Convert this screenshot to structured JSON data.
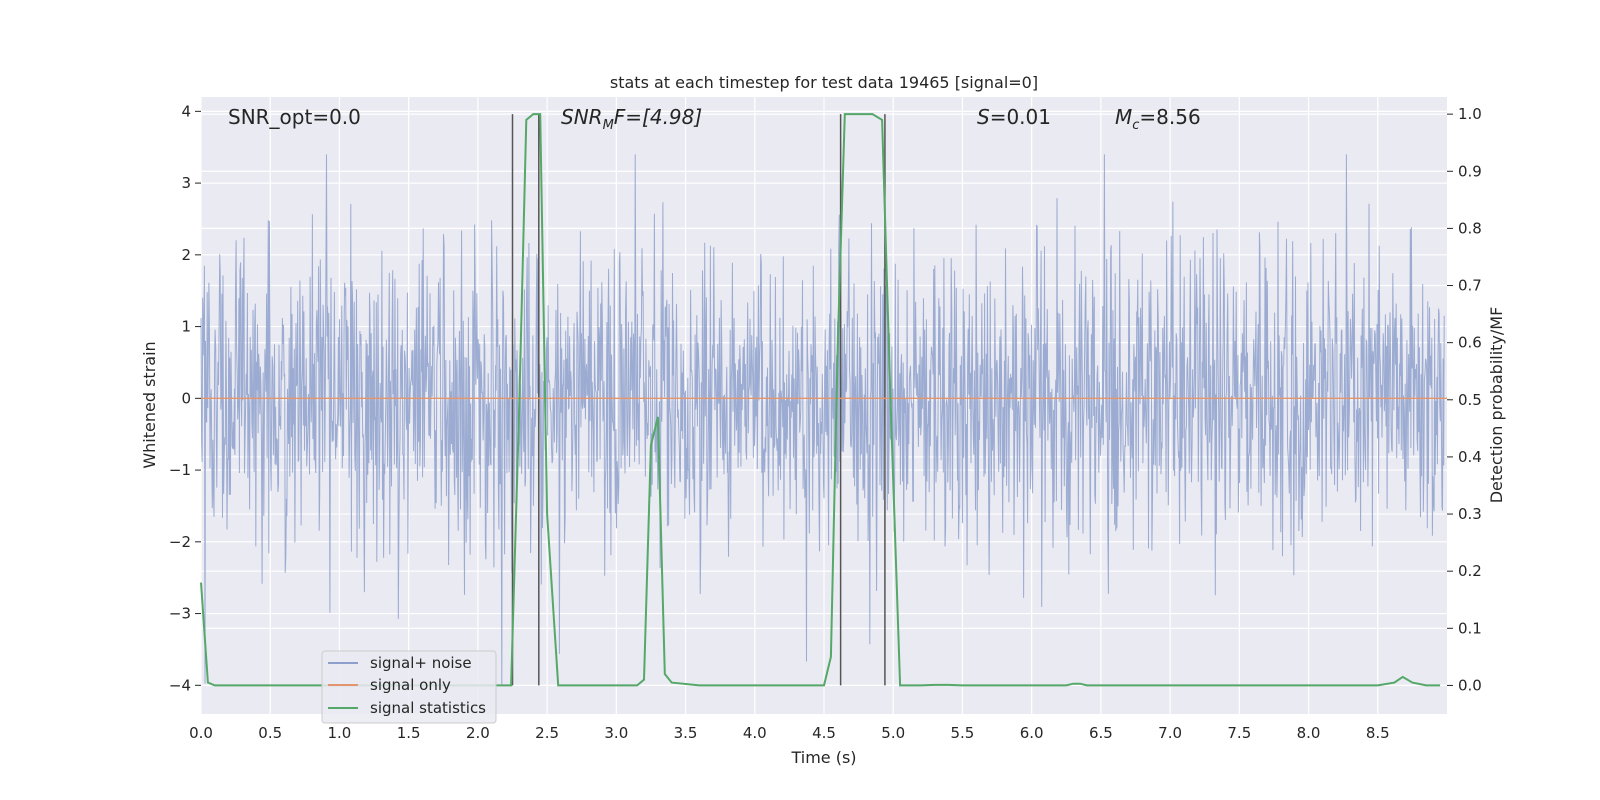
{
  "chart_data": {
    "type": "line",
    "title": "stats at each timestep for test data 19465 [signal=0]",
    "xlabel": "Time (s)",
    "ylabel_left": "Whitened strain",
    "ylabel_right": "Detection probability/MF",
    "xlim": [
      0.0,
      9.0
    ],
    "ylim_left": [
      -4.4,
      4.2
    ],
    "ylim_right": [
      -0.05,
      1.03
    ],
    "x_ticks": [
      "0.0",
      "0.5",
      "1.0",
      "1.5",
      "2.0",
      "2.5",
      "3.0",
      "3.5",
      "4.0",
      "4.5",
      "5.0",
      "5.5",
      "6.0",
      "6.5",
      "7.0",
      "7.5",
      "8.0",
      "8.5"
    ],
    "y_ticks_left": [
      "4",
      "3",
      "2",
      "1",
      "0",
      "−1",
      "−2",
      "−3",
      "−4"
    ],
    "y_ticks_right": [
      "1.0",
      "0.9",
      "0.8",
      "0.7",
      "0.6",
      "0.5",
      "0.4",
      "0.3",
      "0.2",
      "0.1",
      "0.0"
    ],
    "grid": true,
    "legend_position": "lower-left",
    "annotations": {
      "snr_opt": "SNR_opt=0.0",
      "snr_mf": "SNR",
      "snr_mf_sub": "M",
      "snr_mf_rest": "F=[4.98]",
      "s": "S",
      "s_rest": "=0.01",
      "mc": "M",
      "mc_sub": "c",
      "mc_rest": "=8.56"
    },
    "series": [
      {
        "name": "signal+ noise",
        "color": "#8da0cb",
        "axis": "left",
        "description_range": [
          -4.0,
          3.4
        ]
      },
      {
        "name": "signal only",
        "color": "#e29670",
        "axis": "left",
        "x": [
          0.0,
          9.0
        ],
        "y": [
          0.0,
          0.0
        ]
      },
      {
        "name": "signal statistics",
        "color": "#55a868",
        "axis": "right",
        "x": [
          0.0,
          0.05,
          0.1,
          0.5,
          1.0,
          1.5,
          2.0,
          2.24,
          2.3,
          2.35,
          2.4,
          2.45,
          2.5,
          2.58,
          2.7,
          3.0,
          3.15,
          3.2,
          3.25,
          3.3,
          3.35,
          3.4,
          3.6,
          4.0,
          4.5,
          4.55,
          4.6,
          4.65,
          4.7,
          4.75,
          4.85,
          4.92,
          4.98,
          5.05,
          5.1,
          5.2,
          5.3,
          5.4,
          5.5,
          6.0,
          6.25,
          6.3,
          6.35,
          6.4,
          7.0,
          8.0,
          8.5,
          8.62,
          8.68,
          8.75,
          8.85,
          8.95
        ],
        "y": [
          0.18,
          0.005,
          0.0,
          0.0,
          0.0,
          0.0,
          0.0,
          0.0,
          0.5,
          0.99,
          1.0,
          1.0,
          0.3,
          0.0,
          0.0,
          0.0,
          0.0,
          0.01,
          0.42,
          0.47,
          0.02,
          0.005,
          0.0,
          0.0,
          0.0,
          0.05,
          0.6,
          1.0,
          1.0,
          1.0,
          1.0,
          0.99,
          0.5,
          0.0,
          0.0,
          0.0,
          0.001,
          0.001,
          0.0,
          0.0,
          0.0,
          0.003,
          0.003,
          0.0,
          0.0,
          0.0,
          0.0,
          0.005,
          0.015,
          0.005,
          0.0,
          0.0
        ]
      }
    ],
    "vertical_lines": [
      2.25,
      2.44,
      4.62,
      4.94
    ],
    "vertical_line_color": "#555555"
  }
}
